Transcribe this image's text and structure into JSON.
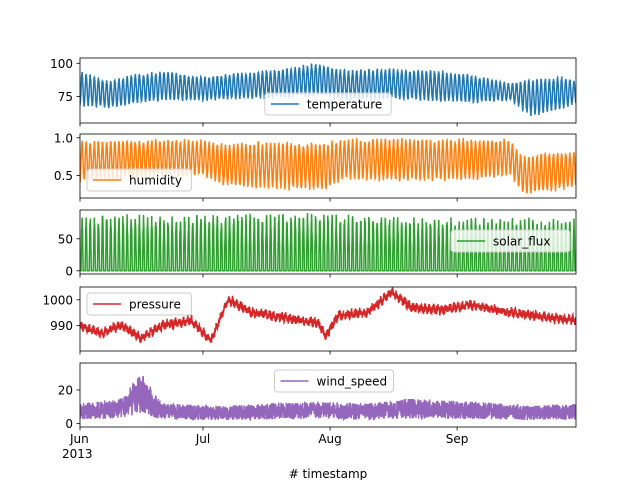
{
  "chart_data": {
    "type": "line",
    "layout": "stacked-subplots",
    "shared_x": true,
    "xlabel": "# timestamp",
    "x_range": [
      "2013-06-01",
      "2013-09-30"
    ],
    "x_ticks": [
      {
        "date": "2013-06-01",
        "label": "Jun",
        "sublabel": "2013"
      },
      {
        "date": "2013-07-01",
        "label": "Jul",
        "sublabel": ""
      },
      {
        "date": "2013-08-01",
        "label": "Aug",
        "sublabel": ""
      },
      {
        "date": "2013-09-01",
        "label": "Sep",
        "sublabel": ""
      }
    ],
    "panels": [
      {
        "name": "temperature",
        "color": "#1f77b4",
        "legend": "lower-center",
        "ylim": [
          55,
          104
        ],
        "yticks": [
          75,
          100
        ],
        "ytick_labels": [
          "75",
          "100"
        ],
        "cycle": "daily",
        "series": [
          {
            "day": 0,
            "low": 68,
            "high": 94
          },
          {
            "day": 7,
            "low": 66,
            "high": 87
          },
          {
            "day": 14,
            "low": 70,
            "high": 92
          },
          {
            "day": 21,
            "low": 72,
            "high": 94
          },
          {
            "day": 30,
            "low": 72,
            "high": 90
          },
          {
            "day": 40,
            "low": 73,
            "high": 93
          },
          {
            "day": 50,
            "low": 74,
            "high": 96
          },
          {
            "day": 58,
            "low": 76,
            "high": 100
          },
          {
            "day": 65,
            "low": 72,
            "high": 95
          },
          {
            "day": 75,
            "low": 73,
            "high": 96
          },
          {
            "day": 85,
            "low": 72,
            "high": 95
          },
          {
            "day": 95,
            "low": 70,
            "high": 92
          },
          {
            "day": 105,
            "low": 72,
            "high": 85
          },
          {
            "day": 110,
            "low": 60,
            "high": 88
          },
          {
            "day": 118,
            "low": 66,
            "high": 90
          },
          {
            "day": 121,
            "low": 70,
            "high": 86
          }
        ]
      },
      {
        "name": "humidity",
        "color": "#ff7f0e",
        "legend": "lower-left",
        "ylim": [
          0.2,
          1.05
        ],
        "yticks": [
          0.5,
          1.0
        ],
        "ytick_labels": [
          "0.5",
          "1.0"
        ],
        "cycle": "daily",
        "series": [
          {
            "day": 0,
            "low": 0.42,
            "high": 0.95
          },
          {
            "day": 10,
            "low": 0.45,
            "high": 0.97
          },
          {
            "day": 20,
            "low": 0.48,
            "high": 0.98
          },
          {
            "day": 30,
            "low": 0.5,
            "high": 0.97
          },
          {
            "day": 35,
            "low": 0.35,
            "high": 0.92
          },
          {
            "day": 50,
            "low": 0.32,
            "high": 0.95
          },
          {
            "day": 60,
            "low": 0.3,
            "high": 0.93
          },
          {
            "day": 65,
            "low": 0.45,
            "high": 0.98
          },
          {
            "day": 80,
            "low": 0.42,
            "high": 0.99
          },
          {
            "day": 95,
            "low": 0.44,
            "high": 0.98
          },
          {
            "day": 105,
            "low": 0.5,
            "high": 0.98
          },
          {
            "day": 108,
            "low": 0.25,
            "high": 0.75
          },
          {
            "day": 115,
            "low": 0.28,
            "high": 0.82
          },
          {
            "day": 121,
            "low": 0.35,
            "high": 0.8
          }
        ]
      },
      {
        "name": "solar_flux",
        "color": "#2ca02c",
        "legend": "right",
        "ylim": [
          -5,
          95
        ],
        "yticks": [
          0,
          50
        ],
        "ytick_labels": [
          "0",
          "50"
        ],
        "cycle": "daily-spike",
        "series": [
          {
            "day": 0,
            "low": 0,
            "high": 90
          },
          {
            "day": 20,
            "low": 0,
            "high": 88
          },
          {
            "day": 45,
            "low": 0,
            "high": 92
          },
          {
            "day": 70,
            "low": 0,
            "high": 88
          },
          {
            "day": 95,
            "low": 0,
            "high": 85
          },
          {
            "day": 121,
            "low": 0,
            "high": 82
          }
        ]
      },
      {
        "name": "pressure",
        "color": "#d62728",
        "legend": "upper-left",
        "ylim": [
          980,
          1005
        ],
        "yticks": [
          990,
          1000
        ],
        "ytick_labels": [
          "990",
          "1000"
        ],
        "cycle": "noisy",
        "series": [
          {
            "day": 0,
            "value": 990
          },
          {
            "day": 5,
            "value": 987
          },
          {
            "day": 10,
            "value": 990
          },
          {
            "day": 15,
            "value": 985
          },
          {
            "day": 20,
            "value": 990
          },
          {
            "day": 27,
            "value": 992
          },
          {
            "day": 32,
            "value": 984
          },
          {
            "day": 36,
            "value": 1000
          },
          {
            "day": 42,
            "value": 995
          },
          {
            "day": 50,
            "value": 993
          },
          {
            "day": 58,
            "value": 991
          },
          {
            "day": 60,
            "value": 986
          },
          {
            "day": 63,
            "value": 994
          },
          {
            "day": 70,
            "value": 995
          },
          {
            "day": 76,
            "value": 1003
          },
          {
            "day": 81,
            "value": 997
          },
          {
            "day": 88,
            "value": 996
          },
          {
            "day": 95,
            "value": 998
          },
          {
            "day": 102,
            "value": 996
          },
          {
            "day": 110,
            "value": 994
          },
          {
            "day": 121,
            "value": 992
          }
        ]
      },
      {
        "name": "wind_speed",
        "color": "#9467bd",
        "legend": "upper-center",
        "ylim": [
          -2,
          36
        ],
        "yticks": [
          0,
          20
        ],
        "ytick_labels": [
          "0",
          "20"
        ],
        "cycle": "noisy",
        "series": [
          {
            "day": 0,
            "value": 8
          },
          {
            "day": 10,
            "value": 10
          },
          {
            "day": 15,
            "value": 20
          },
          {
            "day": 20,
            "value": 8
          },
          {
            "day": 35,
            "value": 7
          },
          {
            "day": 55,
            "value": 9
          },
          {
            "day": 70,
            "value": 8
          },
          {
            "day": 80,
            "value": 10
          },
          {
            "day": 95,
            "value": 9
          },
          {
            "day": 110,
            "value": 7
          },
          {
            "day": 121,
            "value": 8
          }
        ]
      }
    ]
  }
}
